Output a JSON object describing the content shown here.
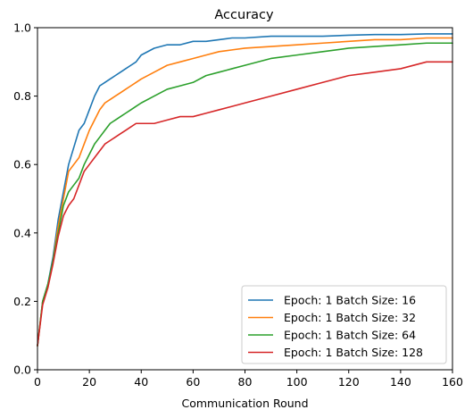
{
  "chart_data": {
    "type": "line",
    "title": "Accuracy",
    "xlabel": "Communication Round",
    "ylabel": "",
    "xlim": [
      0,
      160
    ],
    "ylim": [
      0,
      1.0
    ],
    "xticks": [
      0,
      20,
      40,
      60,
      80,
      100,
      120,
      140,
      160
    ],
    "xtick_labels": [
      "0",
      "20",
      "40",
      "60",
      "80",
      "100",
      "120",
      "140",
      "160"
    ],
    "yticks": [
      0,
      0.2,
      0.4,
      0.6,
      0.8,
      1.0
    ],
    "ytick_labels": [
      "0.0",
      "0.2",
      "0.4",
      "0.6",
      "0.8",
      "1.0"
    ],
    "grid": false,
    "legend_position": "bottom-right",
    "colors": [
      "#1f77b4",
      "#ff7f0e",
      "#2ca02c",
      "#d62728"
    ],
    "series": [
      {
        "name": "Epoch: 1  Batch Size: 16",
        "color": "#1f77b4",
        "x": [
          0,
          2,
          4,
          6,
          8,
          10,
          12,
          14,
          16,
          18,
          20,
          22,
          24,
          26,
          28,
          30,
          32,
          34,
          36,
          38,
          40,
          45,
          50,
          55,
          60,
          65,
          70,
          75,
          80,
          90,
          100,
          110,
          120,
          130,
          140,
          150,
          160
        ],
        "values": [
          0.07,
          0.2,
          0.25,
          0.33,
          0.44,
          0.52,
          0.6,
          0.65,
          0.7,
          0.72,
          0.76,
          0.8,
          0.83,
          0.84,
          0.85,
          0.86,
          0.87,
          0.88,
          0.89,
          0.9,
          0.92,
          0.94,
          0.95,
          0.95,
          0.96,
          0.96,
          0.965,
          0.97,
          0.97,
          0.975,
          0.975,
          0.975,
          0.978,
          0.98,
          0.98,
          0.982,
          0.982
        ]
      },
      {
        "name": "Epoch: 1  Batch Size: 32",
        "color": "#ff7f0e",
        "x": [
          0,
          2,
          4,
          6,
          8,
          10,
          12,
          14,
          16,
          18,
          20,
          22,
          24,
          26,
          28,
          30,
          32,
          34,
          36,
          38,
          40,
          45,
          50,
          55,
          60,
          65,
          70,
          75,
          80,
          90,
          100,
          110,
          120,
          130,
          140,
          150,
          160
        ],
        "values": [
          0.07,
          0.2,
          0.24,
          0.32,
          0.42,
          0.5,
          0.58,
          0.6,
          0.62,
          0.66,
          0.7,
          0.73,
          0.76,
          0.78,
          0.79,
          0.8,
          0.81,
          0.82,
          0.83,
          0.84,
          0.85,
          0.87,
          0.89,
          0.9,
          0.91,
          0.92,
          0.93,
          0.935,
          0.94,
          0.945,
          0.95,
          0.955,
          0.96,
          0.965,
          0.965,
          0.97,
          0.97
        ]
      },
      {
        "name": "Epoch: 1  Batch Size: 64",
        "color": "#2ca02c",
        "x": [
          0,
          2,
          4,
          6,
          8,
          10,
          12,
          14,
          16,
          18,
          20,
          22,
          24,
          26,
          28,
          30,
          32,
          34,
          36,
          38,
          40,
          45,
          50,
          55,
          60,
          65,
          70,
          75,
          80,
          90,
          100,
          110,
          120,
          130,
          140,
          150,
          160
        ],
        "values": [
          0.07,
          0.2,
          0.25,
          0.32,
          0.4,
          0.48,
          0.52,
          0.54,
          0.56,
          0.6,
          0.63,
          0.66,
          0.68,
          0.7,
          0.72,
          0.73,
          0.74,
          0.75,
          0.76,
          0.77,
          0.78,
          0.8,
          0.82,
          0.83,
          0.84,
          0.86,
          0.87,
          0.88,
          0.89,
          0.91,
          0.92,
          0.93,
          0.94,
          0.945,
          0.95,
          0.955,
          0.955
        ]
      },
      {
        "name": "Epoch: 1  Batch Size: 128",
        "color": "#d62728",
        "x": [
          0,
          2,
          4,
          6,
          8,
          10,
          12,
          14,
          16,
          18,
          20,
          22,
          24,
          26,
          28,
          30,
          32,
          34,
          36,
          38,
          40,
          45,
          50,
          55,
          60,
          65,
          70,
          75,
          80,
          90,
          100,
          110,
          120,
          130,
          140,
          150,
          160
        ],
        "values": [
          0.07,
          0.19,
          0.24,
          0.31,
          0.39,
          0.45,
          0.48,
          0.5,
          0.54,
          0.58,
          0.6,
          0.62,
          0.64,
          0.66,
          0.67,
          0.68,
          0.69,
          0.7,
          0.71,
          0.72,
          0.72,
          0.72,
          0.73,
          0.74,
          0.74,
          0.75,
          0.76,
          0.77,
          0.78,
          0.8,
          0.82,
          0.84,
          0.86,
          0.87,
          0.88,
          0.9,
          0.9
        ]
      }
    ]
  }
}
